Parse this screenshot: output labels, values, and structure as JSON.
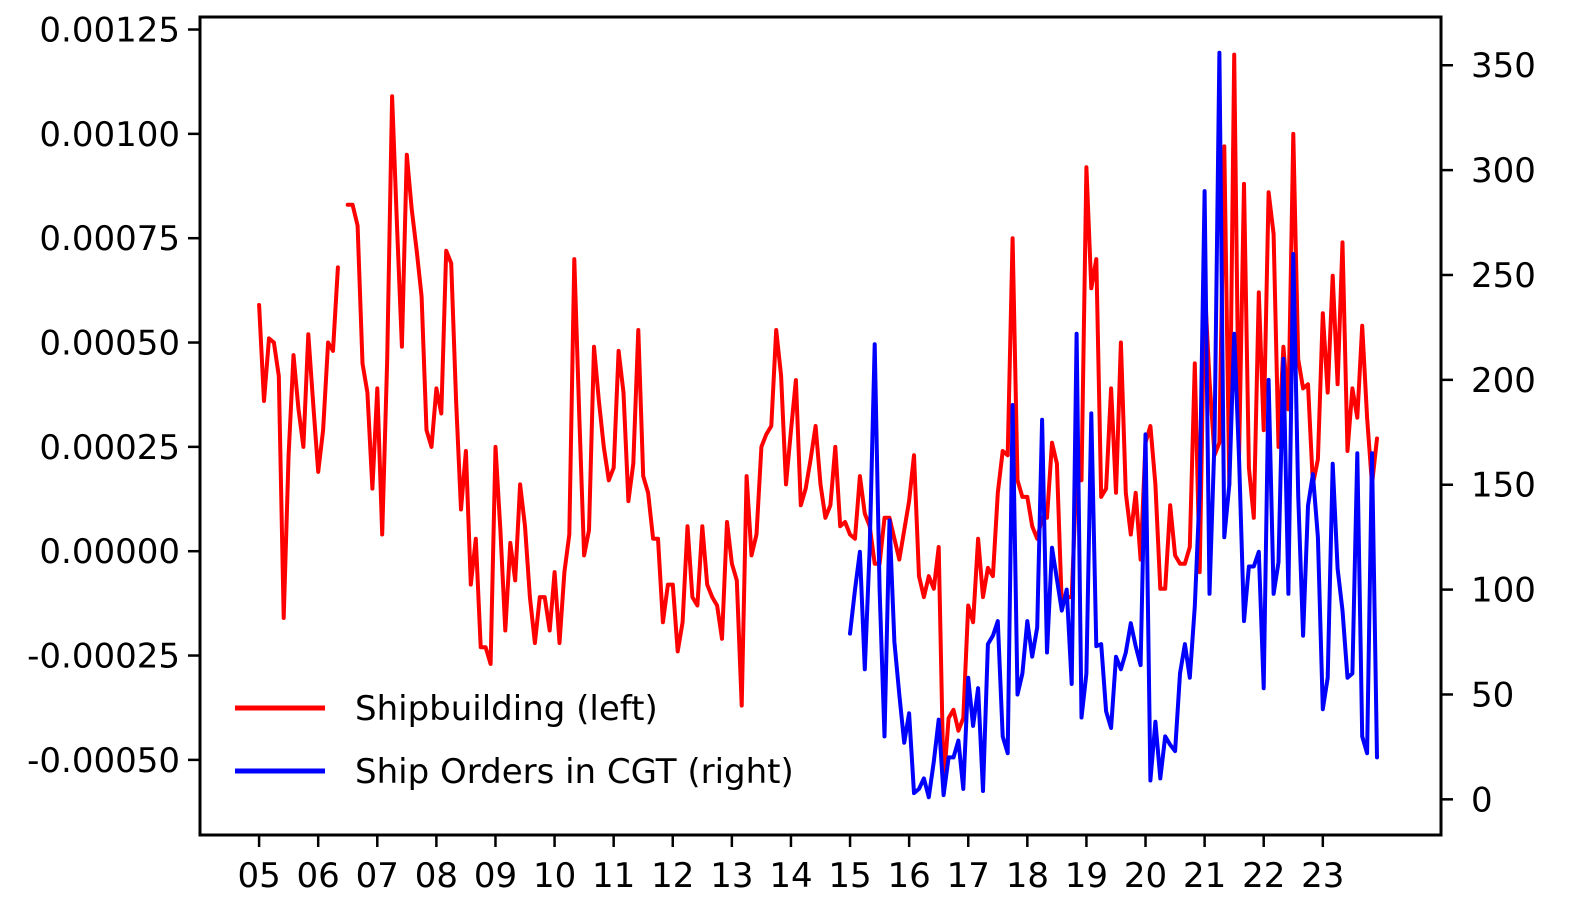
{
  "chart_data": {
    "type": "line",
    "title": "",
    "xlabel": "",
    "ylabel": "",
    "x_ticks": [
      "05",
      "06",
      "07",
      "08",
      "09",
      "10",
      "11",
      "12",
      "13",
      "14",
      "15",
      "16",
      "17",
      "18",
      "19",
      "20",
      "21",
      "22",
      "23"
    ],
    "x_range": [
      2004.0,
      2025.0
    ],
    "left_axis": {
      "range": [
        -0.00068,
        0.00128
      ],
      "ticks": [
        {
          "value": 0.00125,
          "label": "0.00125"
        },
        {
          "value": 0.001,
          "label": "0.00100"
        },
        {
          "value": 0.00075,
          "label": "0.00075"
        },
        {
          "value": 0.0005,
          "label": "0.00050"
        },
        {
          "value": 0.00025,
          "label": "0.00025"
        },
        {
          "value": 0.0,
          "label": "0.00000"
        },
        {
          "value": -0.00025,
          "label": "-0.00025"
        },
        {
          "value": -0.0005,
          "label": "-0.00050"
        }
      ]
    },
    "right_axis": {
      "range": [
        -17,
        373
      ],
      "ticks": [
        {
          "value": 350,
          "label": "350"
        },
        {
          "value": 300,
          "label": "300"
        },
        {
          "value": 250,
          "label": "250"
        },
        {
          "value": 200,
          "label": "200"
        },
        {
          "value": 150,
          "label": "150"
        },
        {
          "value": 100,
          "label": "100"
        },
        {
          "value": 50,
          "label": "50"
        },
        {
          "value": 0,
          "label": "0"
        }
      ]
    },
    "legend_position": "lower-left",
    "grid": false,
    "series": [
      {
        "name": "Shipbuilding (left)",
        "axis": "left",
        "color": "#ff0000",
        "segments": [
          {
            "x": [
              2005.0,
              2005.083,
              2005.167,
              2005.25,
              2005.333,
              2005.417,
              2005.5,
              2005.583,
              2005.667,
              2005.75,
              2005.833,
              2005.917,
              2006.0,
              2006.083,
              2006.167,
              2006.25,
              2006.333
            ],
            "y": [
              0.00059,
              0.00036,
              0.00051,
              0.0005,
              0.00042,
              -0.00016,
              0.00023,
              0.00047,
              0.00034,
              0.00025,
              0.00052,
              0.00035,
              0.00019,
              0.00029,
              0.0005,
              0.00048,
              0.00068
            ]
          },
          {
            "x": [
              2006.5,
              2006.583,
              2006.667,
              2006.75,
              2006.833,
              2006.917,
              2007.0,
              2007.083,
              2007.167,
              2007.25,
              2007.333,
              2007.417,
              2007.5,
              2007.583,
              2007.667,
              2007.75,
              2007.833,
              2007.917,
              2008.0,
              2008.083,
              2008.167,
              2008.25,
              2008.333,
              2008.417,
              2008.5,
              2008.583,
              2008.667,
              2008.75,
              2008.833,
              2008.917,
              2009.0,
              2009.083,
              2009.167,
              2009.25,
              2009.333,
              2009.417,
              2009.5,
              2009.583,
              2009.667,
              2009.75,
              2009.833,
              2009.917,
              2010.0,
              2010.083,
              2010.167,
              2010.25,
              2010.333,
              2010.417,
              2010.5,
              2010.583,
              2010.667,
              2010.75,
              2010.833,
              2010.917,
              2011.0,
              2011.083,
              2011.167,
              2011.25,
              2011.333,
              2011.417,
              2011.5,
              2011.583,
              2011.667,
              2011.75,
              2011.833,
              2011.917,
              2012.0,
              2012.083,
              2012.167,
              2012.25,
              2012.333,
              2012.417,
              2012.5,
              2012.583,
              2012.667,
              2012.75,
              2012.833,
              2012.917,
              2013.0,
              2013.083,
              2013.167,
              2013.25,
              2013.333,
              2013.417,
              2013.5,
              2013.583,
              2013.667,
              2013.75,
              2013.833,
              2013.917,
              2014.0,
              2014.083,
              2014.167,
              2014.25,
              2014.333,
              2014.417,
              2014.5,
              2014.583,
              2014.667,
              2014.75,
              2014.833,
              2014.917,
              2015.0,
              2015.083,
              2015.167,
              2015.25,
              2015.333,
              2015.417,
              2015.5,
              2015.583,
              2015.667,
              2015.75,
              2015.833,
              2015.917,
              2016.0,
              2016.083,
              2016.167,
              2016.25,
              2016.333,
              2016.417,
              2016.5,
              2016.583,
              2016.667,
              2016.75,
              2016.833,
              2016.917,
              2017.0,
              2017.083,
              2017.167,
              2017.25,
              2017.333,
              2017.417,
              2017.5,
              2017.583,
              2017.667,
              2017.75,
              2017.833,
              2017.917,
              2018.0,
              2018.083,
              2018.167,
              2018.25,
              2018.333,
              2018.417,
              2018.5,
              2018.583,
              2018.667,
              2018.75,
              2018.833,
              2018.917,
              2019.0,
              2019.083,
              2019.167,
              2019.25,
              2019.333,
              2019.417,
              2019.5,
              2019.583,
              2019.667,
              2019.75,
              2019.833,
              2019.917,
              2020.0,
              2020.083,
              2020.167,
              2020.25,
              2020.333,
              2020.417,
              2020.5,
              2020.583,
              2020.667,
              2020.75,
              2020.833,
              2020.917,
              2021.0,
              2021.083,
              2021.167,
              2021.25,
              2021.333,
              2021.417,
              2021.5,
              2021.583,
              2021.667,
              2021.75,
              2021.833,
              2021.917,
              2022.0,
              2022.083,
              2022.167,
              2022.25,
              2022.333,
              2022.417,
              2022.5,
              2022.583,
              2022.667,
              2022.75,
              2022.833,
              2022.917,
              2023.0,
              2023.083,
              2023.167,
              2023.25,
              2023.333,
              2023.417,
              2023.5,
              2023.583,
              2023.667,
              2023.75,
              2023.833,
              2023.917
            ],
            "y": [
              0.00083,
              0.00083,
              0.00078,
              0.00045,
              0.00038,
              0.00015,
              0.00039,
              4e-05,
              0.00046,
              0.00109,
              0.00078,
              0.00049,
              0.00095,
              0.00082,
              0.00072,
              0.00061,
              0.00029,
              0.00025,
              0.00039,
              0.00033,
              0.00072,
              0.00069,
              0.00036,
              0.0001,
              0.00024,
              -8e-05,
              3e-05,
              -0.00023,
              -0.00023,
              -0.00027,
              0.00025,
              5e-05,
              -0.00019,
              2e-05,
              -7e-05,
              0.00016,
              6e-05,
              -0.00011,
              -0.00022,
              -0.00011,
              -0.00011,
              -0.00019,
              -5e-05,
              -0.00022,
              -5e-05,
              4e-05,
              0.0007,
              0.00033,
              -1e-05,
              5e-05,
              0.00049,
              0.00036,
              0.00025,
              0.00017,
              0.0002,
              0.00048,
              0.00038,
              0.00012,
              0.00021,
              0.00053,
              0.00018,
              0.00014,
              3e-05,
              3e-05,
              -0.00017,
              -8e-05,
              -8e-05,
              -0.00024,
              -0.00017,
              6e-05,
              -0.00011,
              -0.00013,
              6e-05,
              -8e-05,
              -0.00011,
              -0.00013,
              -0.00021,
              7e-05,
              -3e-05,
              -7e-05,
              -0.00037,
              0.00018,
              -1e-05,
              4e-05,
              0.00025,
              0.00028,
              0.0003,
              0.00053,
              0.00042,
              0.00016,
              0.00029,
              0.00041,
              0.00011,
              0.00015,
              0.00022,
              0.0003,
              0.00016,
              8e-05,
              0.00011,
              0.00025,
              6e-05,
              7e-05,
              4e-05,
              3e-05,
              0.00018,
              9e-05,
              6e-05,
              -3e-05,
              -3e-05,
              8e-05,
              8e-05,
              3e-05,
              -2e-05,
              5e-05,
              0.00012,
              0.00023,
              -6e-05,
              -0.00011,
              -6e-05,
              -9e-05,
              1e-05,
              -0.00056,
              -0.0004,
              -0.00038,
              -0.00043,
              -0.0004,
              -0.00013,
              -0.00017,
              3e-05,
              -0.00011,
              -4e-05,
              -6e-05,
              0.00014,
              0.00024,
              0.00023,
              0.00075,
              0.00017,
              0.00013,
              0.00013,
              6e-05,
              3e-05,
              8e-05,
              8e-05,
              0.00026,
              0.00021,
              -0.00013,
              -0.00011,
              -0.00011,
              0.00019,
              0.00017,
              0.00092,
              0.00063,
              0.0007,
              0.00013,
              0.00015,
              0.00039,
              0.00014,
              0.0005,
              0.00014,
              4e-05,
              0.00014,
              -2e-05,
              0.00026,
              0.0003,
              0.00016,
              -9e-05,
              -9e-05,
              0.00011,
              -1e-05,
              -3e-05,
              -3e-05,
              1e-05,
              0.00045,
              -5e-05,
              0.00064,
              0.00041,
              0.00023,
              0.00026,
              0.00097,
              0.00016,
              0.00119,
              0.00023,
              0.00088,
              0.0002,
              8e-05,
              0.00062,
              0.00029,
              0.00086,
              0.00076,
              0.00025,
              0.00049,
              0.00034,
              0.001,
              0.00046,
              0.00039,
              0.0004,
              0.00016,
              0.00022,
              0.00057,
              0.00038,
              0.00066,
              0.0004,
              0.00074,
              0.00024,
              0.00039,
              0.00032,
              0.00054,
              0.00032,
              0.00016,
              0.00027
            ]
          }
        ]
      },
      {
        "name": "Ship Orders in CGT (right)",
        "axis": "right",
        "color": "#0000ff",
        "segments": [
          {
            "x": [
              2015.0,
              2015.083,
              2015.167,
              2015.25,
              2015.333,
              2015.417,
              2015.5,
              2015.583,
              2015.667,
              2015.75,
              2015.833,
              2015.917,
              2016.0,
              2016.083,
              2016.167,
              2016.25,
              2016.333,
              2016.417,
              2016.5,
              2016.583,
              2016.667,
              2016.75,
              2016.833,
              2016.917,
              2017.0,
              2017.083,
              2017.167,
              2017.25,
              2017.333,
              2017.417,
              2017.5,
              2017.583,
              2017.667,
              2017.75,
              2017.833,
              2017.917,
              2018.0,
              2018.083,
              2018.167,
              2018.25,
              2018.333,
              2018.417,
              2018.5,
              2018.583,
              2018.667,
              2018.75,
              2018.833,
              2018.917,
              2019.0,
              2019.083,
              2019.167,
              2019.25,
              2019.333,
              2019.417,
              2019.5,
              2019.583,
              2019.667,
              2019.75,
              2019.833,
              2019.917,
              2020.0,
              2020.083,
              2020.167,
              2020.25,
              2020.333,
              2020.417,
              2020.5,
              2020.583,
              2020.667,
              2020.75,
              2020.833,
              2020.917,
              2021.0,
              2021.083,
              2021.167,
              2021.25,
              2021.333,
              2021.417,
              2021.5,
              2021.583,
              2021.667,
              2021.75,
              2021.833,
              2021.917,
              2022.0,
              2022.083,
              2022.167,
              2022.25,
              2022.333,
              2022.417,
              2022.5,
              2022.583,
              2022.667,
              2022.75,
              2022.833,
              2022.917,
              2023.0,
              2023.083,
              2023.167,
              2023.25,
              2023.333,
              2023.417,
              2023.5,
              2023.583,
              2023.667,
              2023.75,
              2023.833,
              2023.917
            ],
            "y": [
              79,
              100,
              118,
              62,
              120,
              217,
              100,
              30,
              133,
              75,
              50,
              27,
              41,
              3,
              5,
              10,
              1,
              18,
              38,
              2,
              20,
              20,
              28,
              5,
              58,
              35,
              53,
              4,
              74,
              78,
              85,
              30,
              22,
              188,
              50,
              60,
              85,
              68,
              82,
              181,
              70,
              120,
              105,
              90,
              100,
              55,
              222,
              39,
              60,
              184,
              73,
              74,
              42,
              34,
              68,
              62,
              70,
              84,
              73,
              64,
              174,
              9,
              37,
              10,
              30,
              26,
              23,
              60,
              74,
              58,
              92,
              147,
              290,
              98,
              171,
              356,
              125,
              150,
              222,
              162,
              85,
              111,
              111,
              118,
              53,
              200,
              98,
              113,
              210,
              98,
              260,
              145,
              78,
              140,
              155,
              125,
              43,
              58,
              160,
              110,
              90,
              58,
              60,
              165,
              30,
              22,
              165,
              20
            ]
          }
        ]
      }
    ]
  }
}
